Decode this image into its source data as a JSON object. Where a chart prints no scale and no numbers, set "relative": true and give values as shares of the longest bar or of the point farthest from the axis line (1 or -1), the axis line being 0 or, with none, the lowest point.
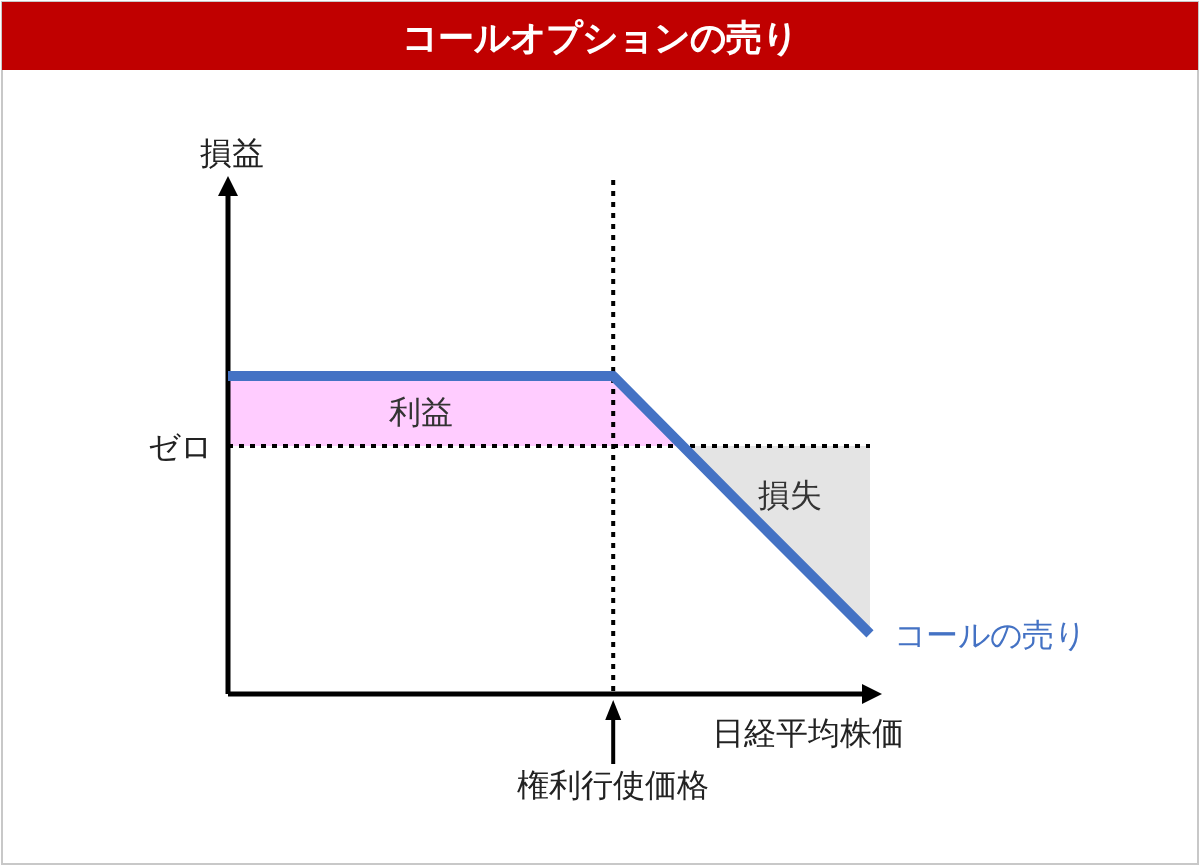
{
  "chart_data": {
    "type": "line",
    "title": "コールオプションの売り",
    "xlabel": "日経平均株価",
    "relative": true,
    "categories": [
      null,
      null,
      null,
      null,
      null,
      null
    ],
    "series": [
      {
        "name": "コールの売り",
        "color": "#4472c4",
        "values": [
          1,
          1,
          1,
          1,
          0.593,
          0.189
        ]
      }
    ],
    "ref_lines": [
      {
        "axis": "y",
        "value": 0.78,
        "label": "ゼロ",
        "line_style": "dotted",
        "color": "#000000"
      }
    ],
    "annotations": [
      "権利行使価格",
      "損益"
    ],
    "bands": [
      {
        "axis": "y",
        "from": 0.78,
        "to": 1,
        "label": "利益",
        "color": "#ffccff"
      },
      {
        "axis": "y",
        "from": 0.189,
        "to": 0.78,
        "label": "損失",
        "color": "#e4e4e4"
      }
    ],
    "legend": "right"
  }
}
